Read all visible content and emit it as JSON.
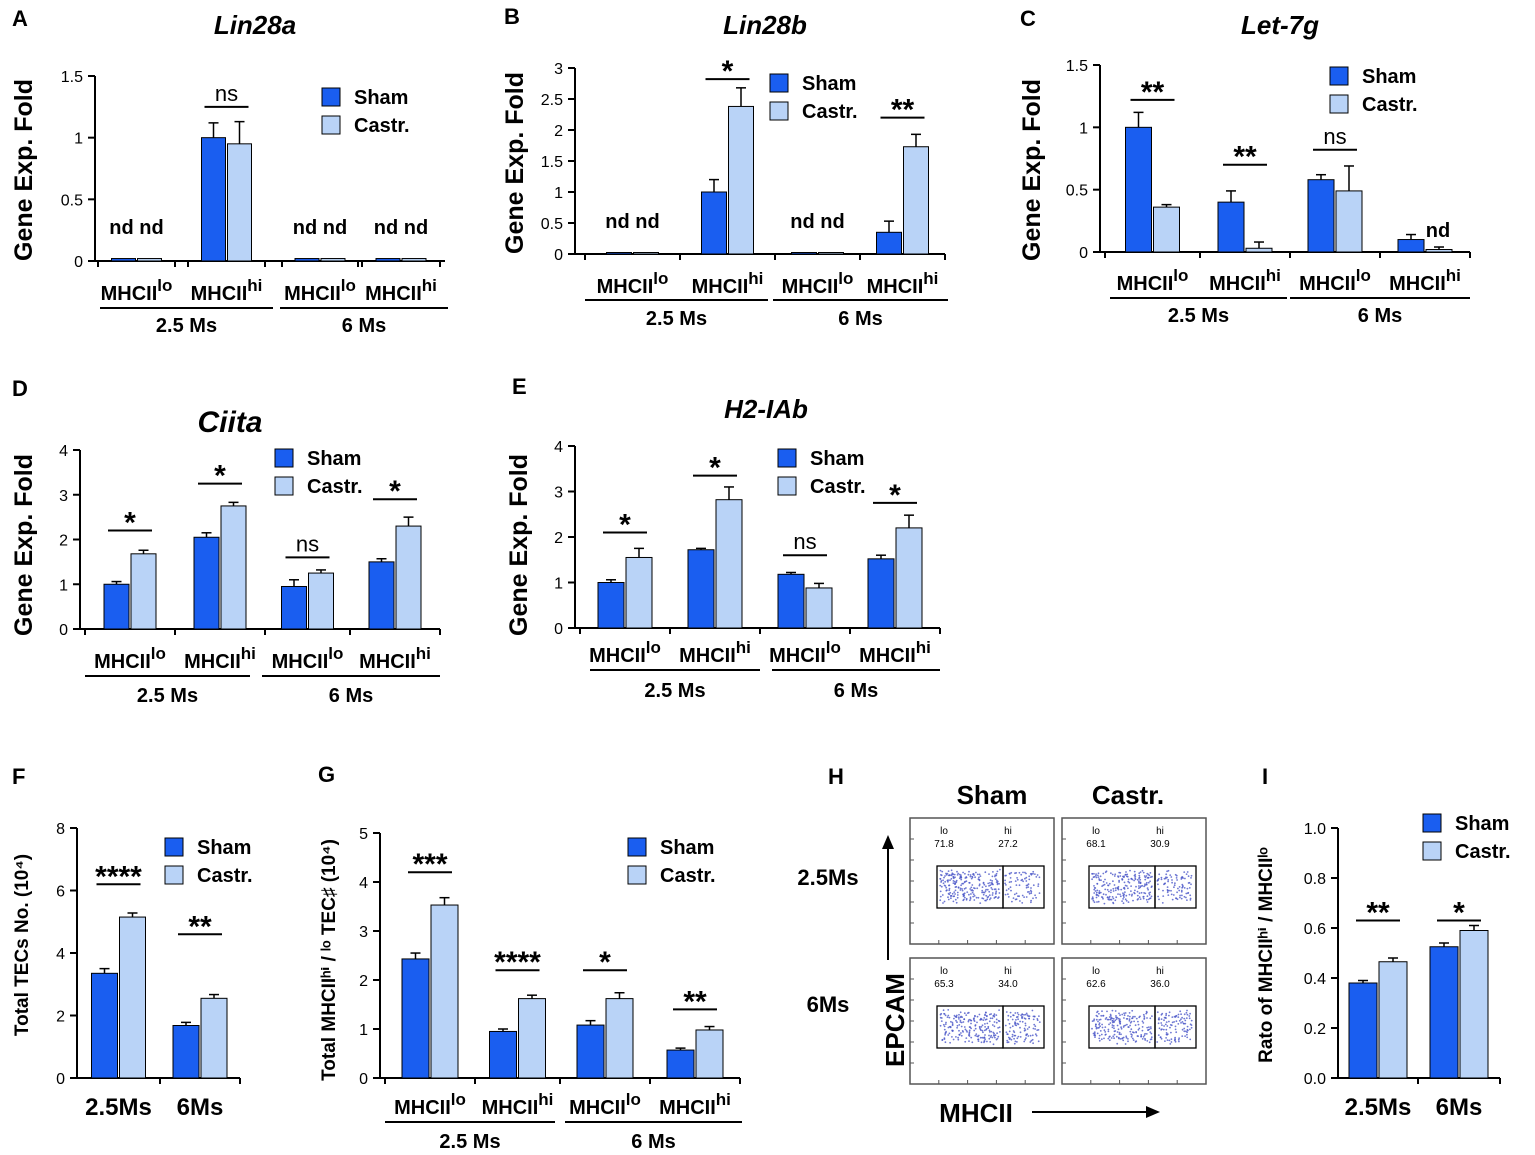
{
  "colors": {
    "sham": "#1a5ef0",
    "castr": "#b9d3f7",
    "axis": "#000000",
    "dot": "#4a56c8"
  },
  "legend": {
    "sham": "Sham",
    "castr": "Castr."
  },
  "chart_data": [
    {
      "id": "A",
      "panel_label": "A",
      "type": "bar",
      "title": "Lin28a",
      "title_italic": true,
      "ylabel": "Gene Exp. Fold",
      "ylim": [
        0,
        1.5
      ],
      "yticks": [
        "0",
        "0.5",
        "1",
        "1.5"
      ],
      "categories": [
        "MHCIIlo",
        "MHCIIhi",
        "MHCIIlo",
        "MHCIIhi"
      ],
      "category_labels": [
        {
          "base": "MHCII",
          "sup": "lo"
        },
        {
          "base": "MHCII",
          "sup": "hi"
        },
        {
          "base": "MHCII",
          "sup": "lo"
        },
        {
          "base": "MHCII",
          "sup": "hi"
        }
      ],
      "groups": [
        {
          "label": "2.5 Ms",
          "from": 0,
          "to": 1
        },
        {
          "label": "6 Ms",
          "from": 2,
          "to": 3
        }
      ],
      "series": [
        {
          "name": "Sham",
          "values": [
            0.02,
            1.0,
            0.02,
            0.02
          ],
          "errors": [
            0,
            0.12,
            0,
            0
          ]
        },
        {
          "name": "Castr.",
          "values": [
            0.02,
            0.95,
            0.02,
            0.02
          ],
          "errors": [
            0,
            0.18,
            0,
            0
          ]
        }
      ],
      "annotations": [
        {
          "cat": 0,
          "text": "nd nd",
          "y": 0.22,
          "line": false
        },
        {
          "cat": 1,
          "text": "ns",
          "y": 1.25,
          "line": true
        },
        {
          "cat": 2,
          "text": "nd nd",
          "y": 0.22,
          "line": false
        },
        {
          "cat": 3,
          "text": "nd nd",
          "y": 0.22,
          "line": false
        }
      ]
    },
    {
      "id": "B",
      "panel_label": "B",
      "type": "bar",
      "title": "Lin28b",
      "title_italic": true,
      "ylabel": "Gene Exp. Fold",
      "ylim": [
        0,
        3
      ],
      "yticks": [
        "0",
        "0.5",
        "1",
        "1.5",
        "2",
        "2.5",
        "3"
      ],
      "categories": [
        "MHCIIlo",
        "MHCIIhi",
        "MHCIIlo",
        "MHCIIhi"
      ],
      "category_labels": [
        {
          "base": "MHCII",
          "sup": "lo"
        },
        {
          "base": "MHCII",
          "sup": "hi"
        },
        {
          "base": "MHCII",
          "sup": "lo"
        },
        {
          "base": "MHCII",
          "sup": "hi"
        }
      ],
      "groups": [
        {
          "label": "2.5 Ms",
          "from": 0,
          "to": 1
        },
        {
          "label": "6 Ms",
          "from": 2,
          "to": 3
        }
      ],
      "series": [
        {
          "name": "Sham",
          "values": [
            0.02,
            1.0,
            0.02,
            0.35
          ],
          "errors": [
            0,
            0.2,
            0,
            0.18
          ]
        },
        {
          "name": "Castr.",
          "values": [
            0.02,
            2.38,
            0.02,
            1.73
          ],
          "errors": [
            0,
            0.3,
            0,
            0.2
          ]
        }
      ],
      "annotations": [
        {
          "cat": 0,
          "text": "nd nd",
          "y": 0.42,
          "line": false
        },
        {
          "cat": 1,
          "text": "*",
          "y": 2.82,
          "line": true
        },
        {
          "cat": 2,
          "text": "nd nd",
          "y": 0.42,
          "line": false
        },
        {
          "cat": 3,
          "text": "**",
          "y": 2.2,
          "line": true
        }
      ]
    },
    {
      "id": "C",
      "panel_label": "C",
      "type": "bar",
      "title": "Let-7g",
      "title_italic": true,
      "ylabel": "Gene Exp. Fold",
      "ylim": [
        0,
        1.5
      ],
      "yticks": [
        "0",
        "0.5",
        "1",
        "1.5"
      ],
      "categories": [
        "MHCIIlo",
        "MHCIIhi",
        "MHCIIlo",
        "MHCIIhi"
      ],
      "category_labels": [
        {
          "base": "MHCII",
          "sup": "lo"
        },
        {
          "base": "MHCII",
          "sup": "hi"
        },
        {
          "base": "MHCII",
          "sup": "lo"
        },
        {
          "base": "MHCII",
          "sup": "hi"
        }
      ],
      "groups": [
        {
          "label": "2.5 Ms",
          "from": 0,
          "to": 1
        },
        {
          "label": "6 Ms",
          "from": 2,
          "to": 3
        }
      ],
      "series": [
        {
          "name": "Sham",
          "values": [
            1.0,
            0.4,
            0.58,
            0.1
          ],
          "errors": [
            0.12,
            0.09,
            0.04,
            0.04
          ]
        },
        {
          "name": "Castr.",
          "values": [
            0.36,
            0.03,
            0.49,
            0.02
          ],
          "errors": [
            0.02,
            0.05,
            0.2,
            0.02
          ]
        }
      ],
      "annotations": [
        {
          "cat": 0,
          "text": "**",
          "y": 1.22,
          "line": true
        },
        {
          "cat": 1,
          "text": "**",
          "y": 0.7,
          "line": true
        },
        {
          "cat": 2,
          "text": "ns",
          "y": 0.82,
          "line": true
        },
        {
          "cat": 3,
          "text": "nd",
          "y": 0.12,
          "line": false,
          "dx": 0.5
        }
      ]
    },
    {
      "id": "D",
      "panel_label": "D",
      "type": "bar",
      "title": "Ciita",
      "title_italic": true,
      "ylabel": "Gene Exp. Fold",
      "ylim": [
        0,
        4
      ],
      "yticks": [
        "0",
        "1",
        "2",
        "3",
        "4"
      ],
      "categories": [
        "MHCIIlo",
        "MHCIIhi",
        "MHCIIlo",
        "MHCIIhi"
      ],
      "category_labels": [
        {
          "base": "MHCII",
          "sup": "lo"
        },
        {
          "base": "MHCII",
          "sup": "hi"
        },
        {
          "base": "MHCII",
          "sup": "lo"
        },
        {
          "base": "MHCII",
          "sup": "hi"
        }
      ],
      "groups": [
        {
          "label": "2.5 Ms",
          "from": 0,
          "to": 1
        },
        {
          "label": "6 Ms",
          "from": 2,
          "to": 3
        }
      ],
      "series": [
        {
          "name": "Sham",
          "values": [
            1.0,
            2.05,
            0.95,
            1.5
          ],
          "errors": [
            0.06,
            0.1,
            0.15,
            0.07
          ]
        },
        {
          "name": "Castr.",
          "values": [
            1.68,
            2.75,
            1.25,
            2.3
          ],
          "errors": [
            0.08,
            0.08,
            0.07,
            0.2
          ]
        }
      ],
      "annotations": [
        {
          "cat": 0,
          "text": "*",
          "y": 2.2,
          "line": true
        },
        {
          "cat": 1,
          "text": "*",
          "y": 3.25,
          "line": true
        },
        {
          "cat": 2,
          "text": "ns",
          "y": 1.6,
          "line": true
        },
        {
          "cat": 3,
          "text": "*",
          "y": 2.9,
          "line": true
        }
      ]
    },
    {
      "id": "E",
      "panel_label": "E",
      "type": "bar",
      "title": "H2-IAb",
      "title_italic": true,
      "ylabel": "Gene Exp. Fold",
      "ylim": [
        0,
        4
      ],
      "yticks": [
        "0",
        "1",
        "2",
        "3",
        "4"
      ],
      "categories": [
        "MHCIIlo",
        "MHCIIhi",
        "MHCIIlo",
        "MHCIIhi"
      ],
      "category_labels": [
        {
          "base": "MHCII",
          "sup": "lo"
        },
        {
          "base": "MHCII",
          "sup": "hi"
        },
        {
          "base": "MHCII",
          "sup": "lo"
        },
        {
          "base": "MHCII",
          "sup": "hi"
        }
      ],
      "groups": [
        {
          "label": "2.5 Ms",
          "from": 0,
          "to": 1
        },
        {
          "label": "6 Ms",
          "from": 2,
          "to": 3
        }
      ],
      "series": [
        {
          "name": "Sham",
          "values": [
            1.0,
            1.72,
            1.18,
            1.52
          ],
          "errors": [
            0.06,
            0.03,
            0.04,
            0.08
          ]
        },
        {
          "name": "Castr.",
          "values": [
            1.55,
            2.82,
            0.88,
            2.2
          ],
          "errors": [
            0.2,
            0.28,
            0.1,
            0.28
          ]
        }
      ],
      "annotations": [
        {
          "cat": 0,
          "text": "*",
          "y": 2.1,
          "line": true
        },
        {
          "cat": 1,
          "text": "*",
          "y": 3.35,
          "line": true
        },
        {
          "cat": 2,
          "text": "ns",
          "y": 1.6,
          "line": true
        },
        {
          "cat": 3,
          "text": "*",
          "y": 2.75,
          "line": true
        }
      ]
    },
    {
      "id": "F",
      "panel_label": "F",
      "type": "bar",
      "title": "",
      "title_italic": false,
      "ylabel": "Total TECs No. (10⁴)",
      "ylim": [
        0,
        8
      ],
      "yticks": [
        "0",
        "2",
        "4",
        "6",
        "8"
      ],
      "categories": [
        "2.5Ms",
        "6Ms"
      ],
      "category_labels": [
        {
          "base": "2.5Ms",
          "sup": ""
        },
        {
          "base": "6Ms",
          "sup": ""
        }
      ],
      "groups": [],
      "series": [
        {
          "name": "Sham",
          "values": [
            3.35,
            1.68
          ],
          "errors": [
            0.15,
            0.1
          ]
        },
        {
          "name": "Castr.",
          "values": [
            5.15,
            2.55
          ],
          "errors": [
            0.13,
            0.12
          ]
        }
      ],
      "annotations": [
        {
          "cat": 0,
          "text": "****",
          "y": 6.2,
          "line": true
        },
        {
          "cat": 1,
          "text": "**",
          "y": 4.6,
          "line": true
        }
      ]
    },
    {
      "id": "G",
      "panel_label": "G",
      "type": "bar",
      "title": "",
      "title_italic": false,
      "ylabel": "Total MHCIIʰⁱ / ˡᵒ TEC♯ (10⁴)",
      "ylim": [
        0,
        5
      ],
      "yticks": [
        "0",
        "1",
        "2",
        "3",
        "4",
        "5"
      ],
      "categories": [
        "MHCIIlo",
        "MHCIIhi",
        "MHCIIlo",
        "MHCIIhi"
      ],
      "category_labels": [
        {
          "base": "MHCII",
          "sup": "lo"
        },
        {
          "base": "MHCII",
          "sup": "hi"
        },
        {
          "base": "MHCII",
          "sup": "lo"
        },
        {
          "base": "MHCII",
          "sup": "hi"
        }
      ],
      "groups": [
        {
          "label": "2.5 Ms",
          "from": 0,
          "to": 1
        },
        {
          "label": "6 Ms",
          "from": 2,
          "to": 3
        }
      ],
      "series": [
        {
          "name": "Sham",
          "values": [
            2.43,
            0.95,
            1.08,
            0.57
          ],
          "errors": [
            0.12,
            0.05,
            0.09,
            0.04
          ]
        },
        {
          "name": "Castr.",
          "values": [
            3.53,
            1.62,
            1.62,
            0.98
          ],
          "errors": [
            0.15,
            0.07,
            0.12,
            0.07
          ]
        }
      ],
      "annotations": [
        {
          "cat": 0,
          "text": "***",
          "y": 4.2,
          "line": true
        },
        {
          "cat": 1,
          "text": "****",
          "y": 2.2,
          "line": true
        },
        {
          "cat": 2,
          "text": "*",
          "y": 2.2,
          "line": true
        },
        {
          "cat": 3,
          "text": "**",
          "y": 1.4,
          "line": true
        }
      ]
    },
    {
      "id": "I",
      "panel_label": "I",
      "type": "bar",
      "title": "",
      "title_italic": false,
      "ylabel": "Rato of MHCIIʰⁱ / MHCIIˡᵒ",
      "ylim": [
        0,
        1.0
      ],
      "yticks": [
        "0.0",
        "0.2",
        "0.4",
        "0.6",
        "0.8",
        "1.0"
      ],
      "categories": [
        "2.5Ms",
        "6Ms"
      ],
      "category_labels": [
        {
          "base": "2.5Ms",
          "sup": ""
        },
        {
          "base": "6Ms",
          "sup": ""
        }
      ],
      "groups": [],
      "series": [
        {
          "name": "Sham",
          "values": [
            0.38,
            0.525
          ],
          "errors": [
            0.01,
            0.015
          ]
        },
        {
          "name": "Castr.",
          "values": [
            0.465,
            0.59
          ],
          "errors": [
            0.015,
            0.02
          ]
        }
      ],
      "annotations": [
        {
          "cat": 0,
          "text": "**",
          "y": 0.63,
          "line": true
        },
        {
          "cat": 1,
          "text": "*",
          "y": 0.63,
          "line": true
        }
      ]
    }
  ],
  "flow_panel": {
    "panel_label": "H",
    "col_titles": [
      "Sham",
      "Castr."
    ],
    "row_titles": [
      "2.5Ms",
      "6Ms"
    ],
    "y_axis": "EPCAM",
    "x_axis": "MHCII",
    "gates": [
      {
        "lo_label": "lo",
        "lo_value": "71.8",
        "hi_label": "hi",
        "hi_value": "27.2",
        "lo_frac": 0.718
      },
      {
        "lo_label": "lo",
        "lo_value": "68.1",
        "hi_label": "hi",
        "hi_value": "30.9",
        "lo_frac": 0.681
      },
      {
        "lo_label": "lo",
        "lo_value": "65.3",
        "hi_label": "hi",
        "hi_value": "34.0",
        "lo_frac": 0.653
      },
      {
        "lo_label": "lo",
        "lo_value": "62.6",
        "hi_label": "hi",
        "hi_value": "36.0",
        "lo_frac": 0.626
      }
    ]
  }
}
